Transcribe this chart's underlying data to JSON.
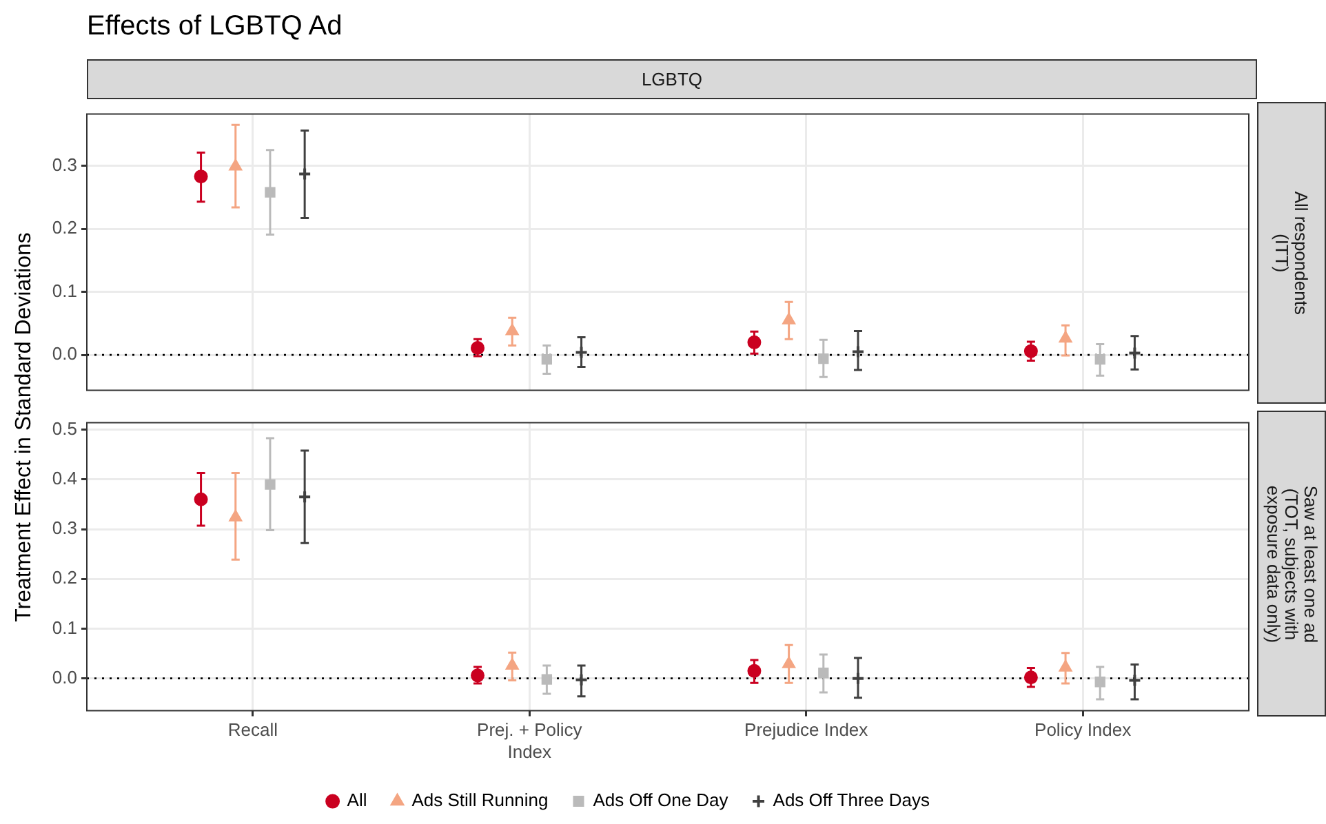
{
  "chart_data": [
    {
      "type": "scatter",
      "title": "Effects of LGBTQ Ad",
      "subtitle": "LGBTQ",
      "ylabel": "Treatment Effect in Standard Deviations",
      "annotations": [
        "All respondents\n(ITT)"
      ],
      "series": [
        {
          "color": "#ca0020",
          "marker": "circle",
          "values": [
            0.283,
            0.011,
            0.02,
            0.006
          ],
          "errors": [
            [
              0.243,
              0.321
            ],
            [
              -0.002,
              0.025
            ],
            [
              0.002,
              0.037
            ],
            [
              -0.009,
              0.021
            ]
          ]
        },
        {
          "color": "#f4a582",
          "marker": "triangle",
          "values": [
            0.299,
            0.038,
            0.055,
            0.026
          ],
          "errors": [
            [
              0.234,
              0.365
            ],
            [
              0.015,
              0.059
            ],
            [
              0.025,
              0.084
            ],
            [
              -0.001,
              0.047
            ]
          ]
        },
        {
          "color": "#bababa",
          "marker": "square",
          "values": [
            0.258,
            -0.007,
            -0.006,
            -0.007
          ],
          "errors": [
            [
              0.191,
              0.325
            ],
            [
              -0.03,
              0.015
            ],
            [
              -0.035,
              0.024
            ],
            [
              -0.033,
              0.017
            ]
          ]
        },
        {
          "color": "#404040",
          "marker": "cross",
          "values": [
            0.287,
            0.004,
            0.005,
            0.003
          ],
          "errors": [
            [
              0.217,
              0.356
            ],
            [
              -0.019,
              0.028
            ],
            [
              -0.024,
              0.038
            ],
            [
              -0.023,
              0.03
            ]
          ]
        }
      ],
      "ylim": [
        -0.056,
        0.382
      ],
      "yticks": [
        {
          "value": 0,
          "label": "0.0"
        },
        0.1,
        0.2,
        0.3
      ],
      "grid": true,
      "tick_labels": "y",
      "legend": false,
      "ref_lines": [
        {
          "axis": "y",
          "value": 0,
          "color": "#000000",
          "line_style": "dotted"
        }
      ]
    },
    {
      "type": "scatter",
      "annotations": [
        "Saw at least one ad\n(TOT, subjects with\nexposure data only)"
      ],
      "categories": [
        "Recall",
        "Prej. + Policy\nIndex",
        "Prejudice Index",
        "Policy Index"
      ],
      "series": [
        {
          "name": "All",
          "color": "#ca0020",
          "marker": "circle",
          "values": [
            0.36,
            0.006,
            0.015,
            0.002
          ],
          "errors": [
            [
              0.307,
              0.413
            ],
            [
              -0.01,
              0.023
            ],
            [
              -0.009,
              0.037
            ],
            [
              -0.017,
              0.021
            ]
          ]
        },
        {
          "name": "Ads Still Running",
          "color": "#f4a582",
          "marker": "triangle",
          "values": [
            0.324,
            0.026,
            0.029,
            0.022
          ],
          "errors": [
            [
              0.239,
              0.413
            ],
            [
              -0.004,
              0.052
            ],
            [
              -0.009,
              0.067
            ],
            [
              -0.01,
              0.051
            ]
          ]
        },
        {
          "name": "Ads Off One Day",
          "color": "#bababa",
          "marker": "square",
          "values": [
            0.39,
            -0.002,
            0.011,
            -0.007
          ],
          "errors": [
            [
              0.298,
              0.483
            ],
            [
              -0.031,
              0.026
            ],
            [
              -0.028,
              0.048
            ],
            [
              -0.042,
              0.023
            ]
          ]
        },
        {
          "name": "Ads Off Three Days",
          "color": "#404040",
          "marker": "cross",
          "values": [
            0.365,
            -0.003,
            0.0,
            -0.004
          ],
          "errors": [
            [
              0.272,
              0.458
            ],
            [
              -0.036,
              0.026
            ],
            [
              -0.039,
              0.041
            ],
            [
              -0.042,
              0.028
            ]
          ]
        }
      ],
      "ylim": [
        -0.065,
        0.514
      ],
      "yticks": [
        {
          "value": 0,
          "label": "0.0"
        },
        0.1,
        0.2,
        0.3,
        0.4,
        0.5
      ],
      "grid": true,
      "legend": "bottom",
      "ref_lines": [
        {
          "axis": "y",
          "value": 0,
          "color": "#000000",
          "line_style": "dotted"
        }
      ]
    }
  ]
}
